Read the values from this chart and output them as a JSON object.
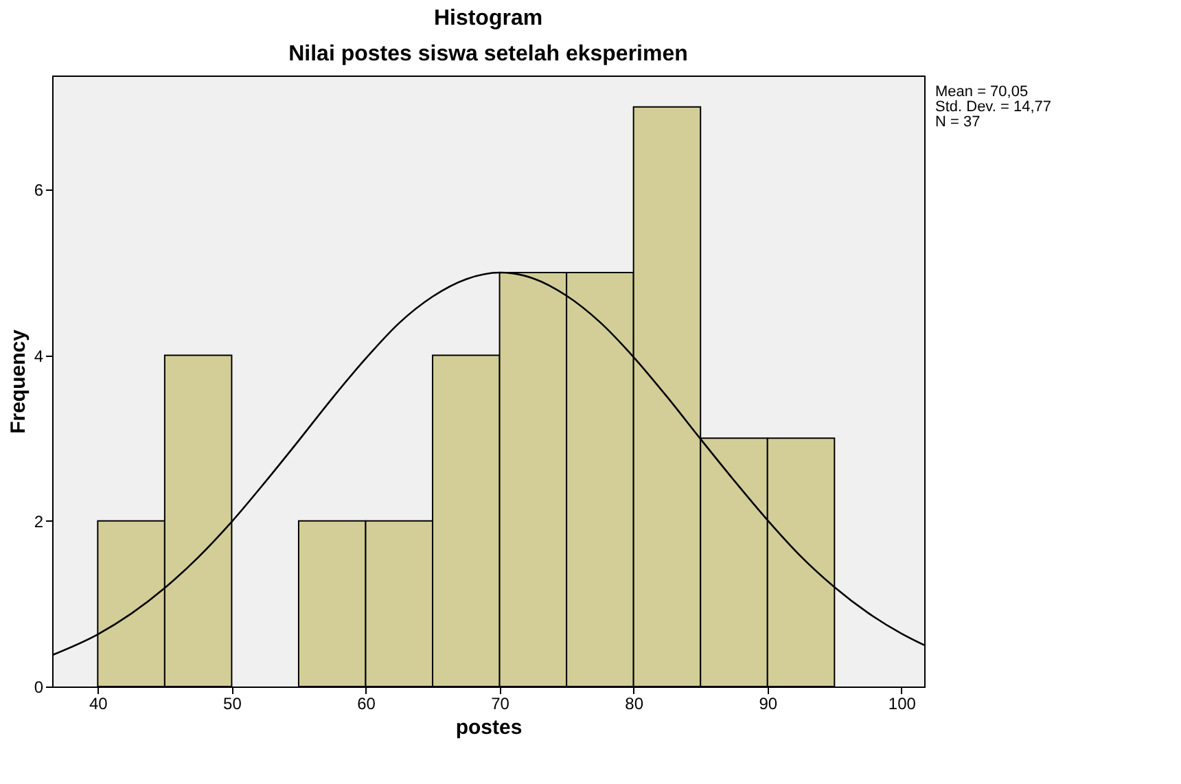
{
  "chart_data": {
    "type": "histogram",
    "title": "Histogram",
    "subtitle": "Nilai postes siswa setelah eksperimen",
    "xlabel": "postes",
    "ylabel": "Frequency",
    "bins": [
      40,
      45,
      50,
      55,
      60,
      65,
      70,
      75,
      80,
      85,
      90,
      95
    ],
    "series": [
      {
        "color": "#d3ce97",
        "values": [
          2,
          4,
          0,
          2,
          2,
          4,
          5,
          5,
          7,
          3,
          3
        ]
      },
      {
        "type": "line",
        "color": "#000000",
        "x": [
          36.6,
          40,
          42.5,
          45,
          47.5,
          50,
          52.5,
          55,
          57.5,
          60,
          62.5,
          65,
          67.5,
          70.05,
          72.5,
          75,
          77.5,
          80,
          82.5,
          85,
          87.5,
          90,
          92.5,
          95,
          97.5,
          100,
          101.7
        ],
        "values": [
          0.38,
          0.63,
          0.88,
          1.19,
          1.56,
          1.99,
          2.47,
          2.97,
          3.48,
          3.96,
          4.39,
          4.71,
          4.92,
          5.0,
          4.93,
          4.72,
          4.4,
          3.98,
          3.5,
          2.99,
          2.49,
          2.01,
          1.57,
          1.2,
          0.89,
          0.64,
          0.5
        ]
      }
    ],
    "xlim": [
      36.6,
      101.7
    ],
    "xticks": [
      40,
      50,
      60,
      70,
      80,
      90,
      100
    ],
    "ylim": [
      0,
      7.38
    ],
    "yticks": [
      0,
      2,
      4,
      6
    ],
    "grid": false,
    "annotations": [
      "Mean = 70,05",
      "Std. Dev. = 14,77",
      "N = 37"
    ]
  }
}
